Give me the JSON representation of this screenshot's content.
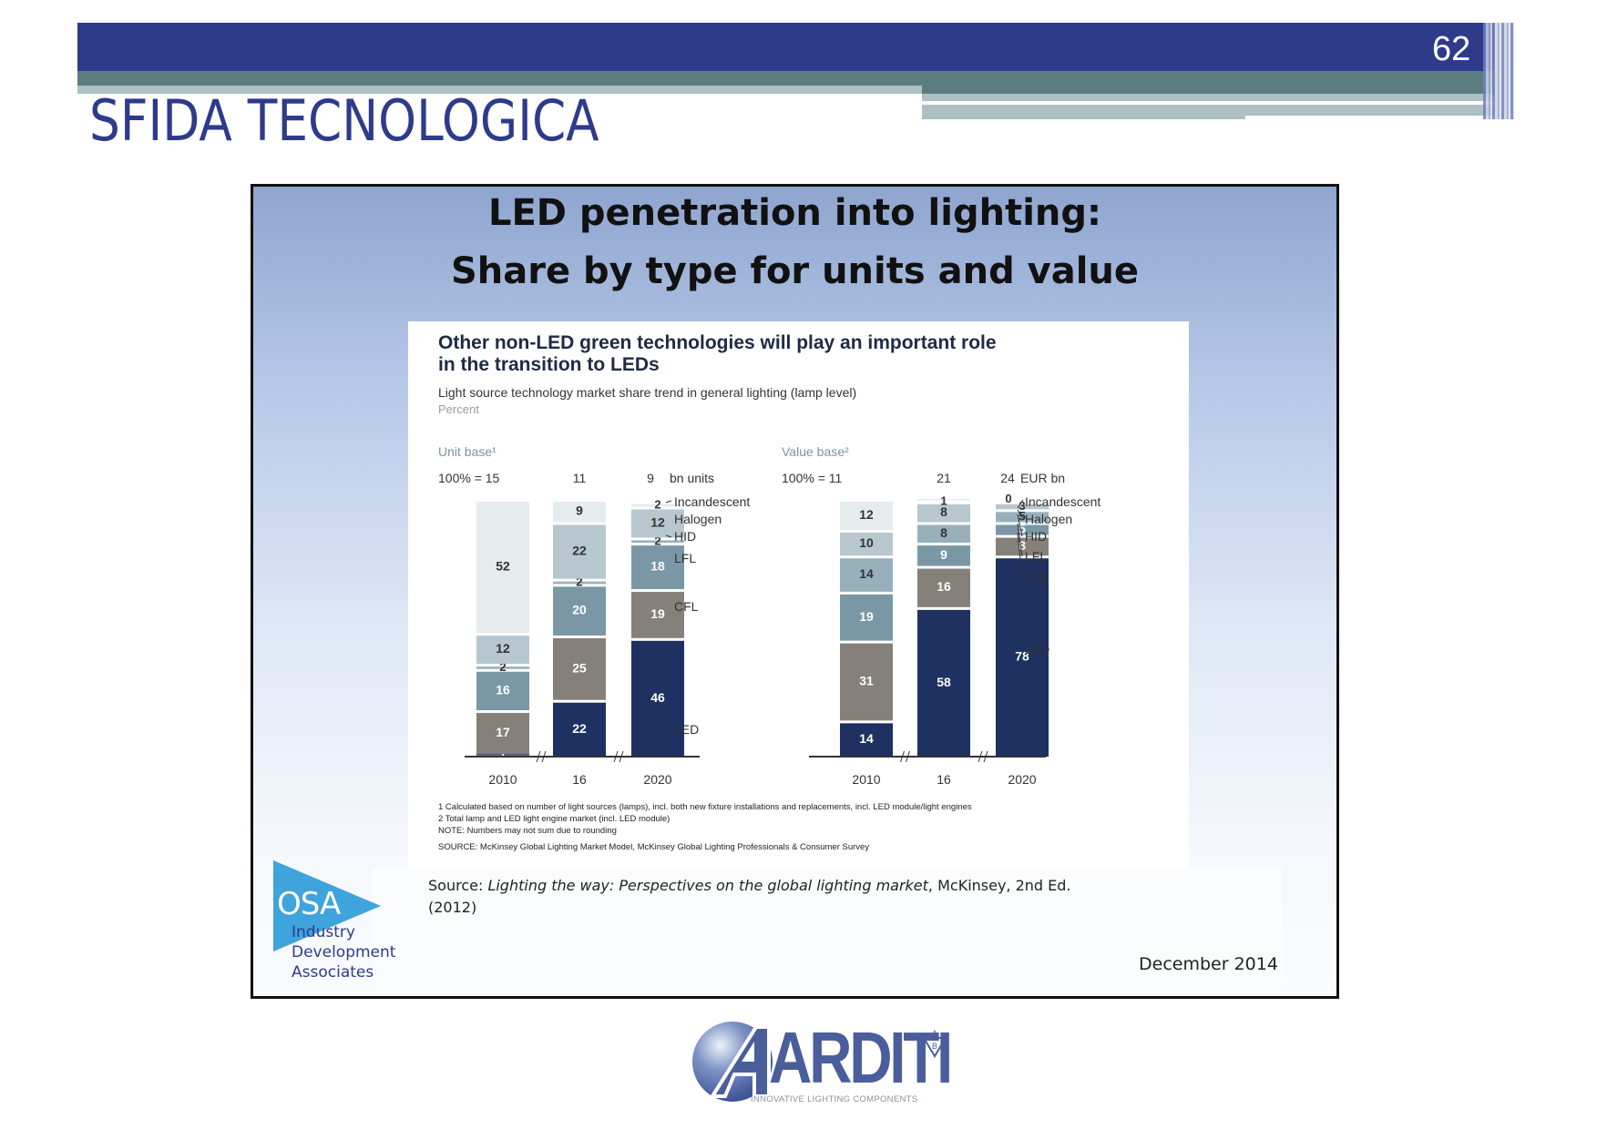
{
  "slide": {
    "number": "62",
    "title": "SFIDA TECNOLOGICA"
  },
  "figure": {
    "title_line1": "LED penetration into lighting:",
    "title_line2": "Share by type for units and value",
    "headline_line1": "Other non-LED green technologies will play an important role",
    "headline_line2": "in the transition to LEDs",
    "subtitle": "Light source technology market share trend in general lighting (lamp level)",
    "unit": "Percent",
    "footnotes": [
      "1 Calculated based on number of light sources (lamps), incl. both new fixture installations and replacements, incl. LED module/light engines",
      "2 Total lamp and LED light engine market (incl. LED module)",
      "NOTE: Numbers may not sum due to rounding"
    ],
    "source_note": "SOURCE: McKinsey Global Lighting Market Model, McKinsey Global Lighting Professionals & Consumer Survey",
    "source_prefix": "Source: ",
    "source_title": "Lighting the way: Perspectives on the global lighting market",
    "source_suffix": ", McKinsey, 2nd Ed.",
    "source_year": "(2012)",
    "date": "December 2014",
    "osa_logo": {
      "acronym": "OSA",
      "line1": "Industry",
      "line2": "Development",
      "line3": "Associates"
    }
  },
  "footer_logo": {
    "name": "ARDITI",
    "tagline": "INNOVATIVE LIGHTING COMPONENTS"
  },
  "colors": {
    "header_blue": "#2e3b8b",
    "header_teal": "#5b7d80",
    "LED": "#1f3160",
    "CFL": "#858079",
    "LFL": "#7a97a6",
    "HID": "#98b0bc",
    "Halogen": "#b7c7cf",
    "Incandescent": "#e6ebee"
  },
  "chart_data": [
    {
      "type": "bar",
      "stacked": true,
      "title": "Unit base¹",
      "total_label": "100% =",
      "totals": [
        "15",
        "11",
        "9"
      ],
      "total_unit": "bn units",
      "categories": [
        "2010",
        "16",
        "2020"
      ],
      "ylabel": "Percent",
      "ylim": [
        0,
        100
      ],
      "series": [
        {
          "name": "LED",
          "values": [
            1,
            22,
            46
          ]
        },
        {
          "name": "CFL",
          "values": [
            17,
            25,
            19
          ]
        },
        {
          "name": "LFL",
          "values": [
            16,
            20,
            18
          ]
        },
        {
          "name": "HID",
          "values": [
            2,
            2,
            2
          ]
        },
        {
          "name": "Halogen",
          "values": [
            12,
            22,
            12
          ]
        },
        {
          "name": "Incandescent",
          "values": [
            52,
            9,
            2
          ]
        }
      ],
      "legend": [
        "Incandescent",
        "Halogen",
        "HID",
        "LFL",
        "CFL",
        "LED"
      ],
      "legend_position": "right"
    },
    {
      "type": "bar",
      "stacked": true,
      "title": "Value base²",
      "total_label": "100% =",
      "totals": [
        "11",
        "21",
        "24"
      ],
      "total_unit": "EUR bn",
      "categories": [
        "2010",
        "16",
        "2020"
      ],
      "ylabel": "Percent",
      "ylim": [
        0,
        100
      ],
      "series": [
        {
          "name": "LED",
          "values": [
            14,
            58,
            78
          ]
        },
        {
          "name": "CFL",
          "values": [
            31,
            16,
            8
          ]
        },
        {
          "name": "LFL",
          "values": [
            19,
            9,
            5
          ]
        },
        {
          "name": "HID",
          "values": [
            14,
            8,
            5
          ]
        },
        {
          "name": "Halogen",
          "values": [
            10,
            8,
            3
          ]
        },
        {
          "name": "Incandescent",
          "values": [
            12,
            1,
            0
          ]
        }
      ],
      "legend": [
        "Incandescent",
        "Halogen",
        "HID",
        "LFL",
        "CFL",
        "LED"
      ],
      "legend_position": "right"
    }
  ]
}
